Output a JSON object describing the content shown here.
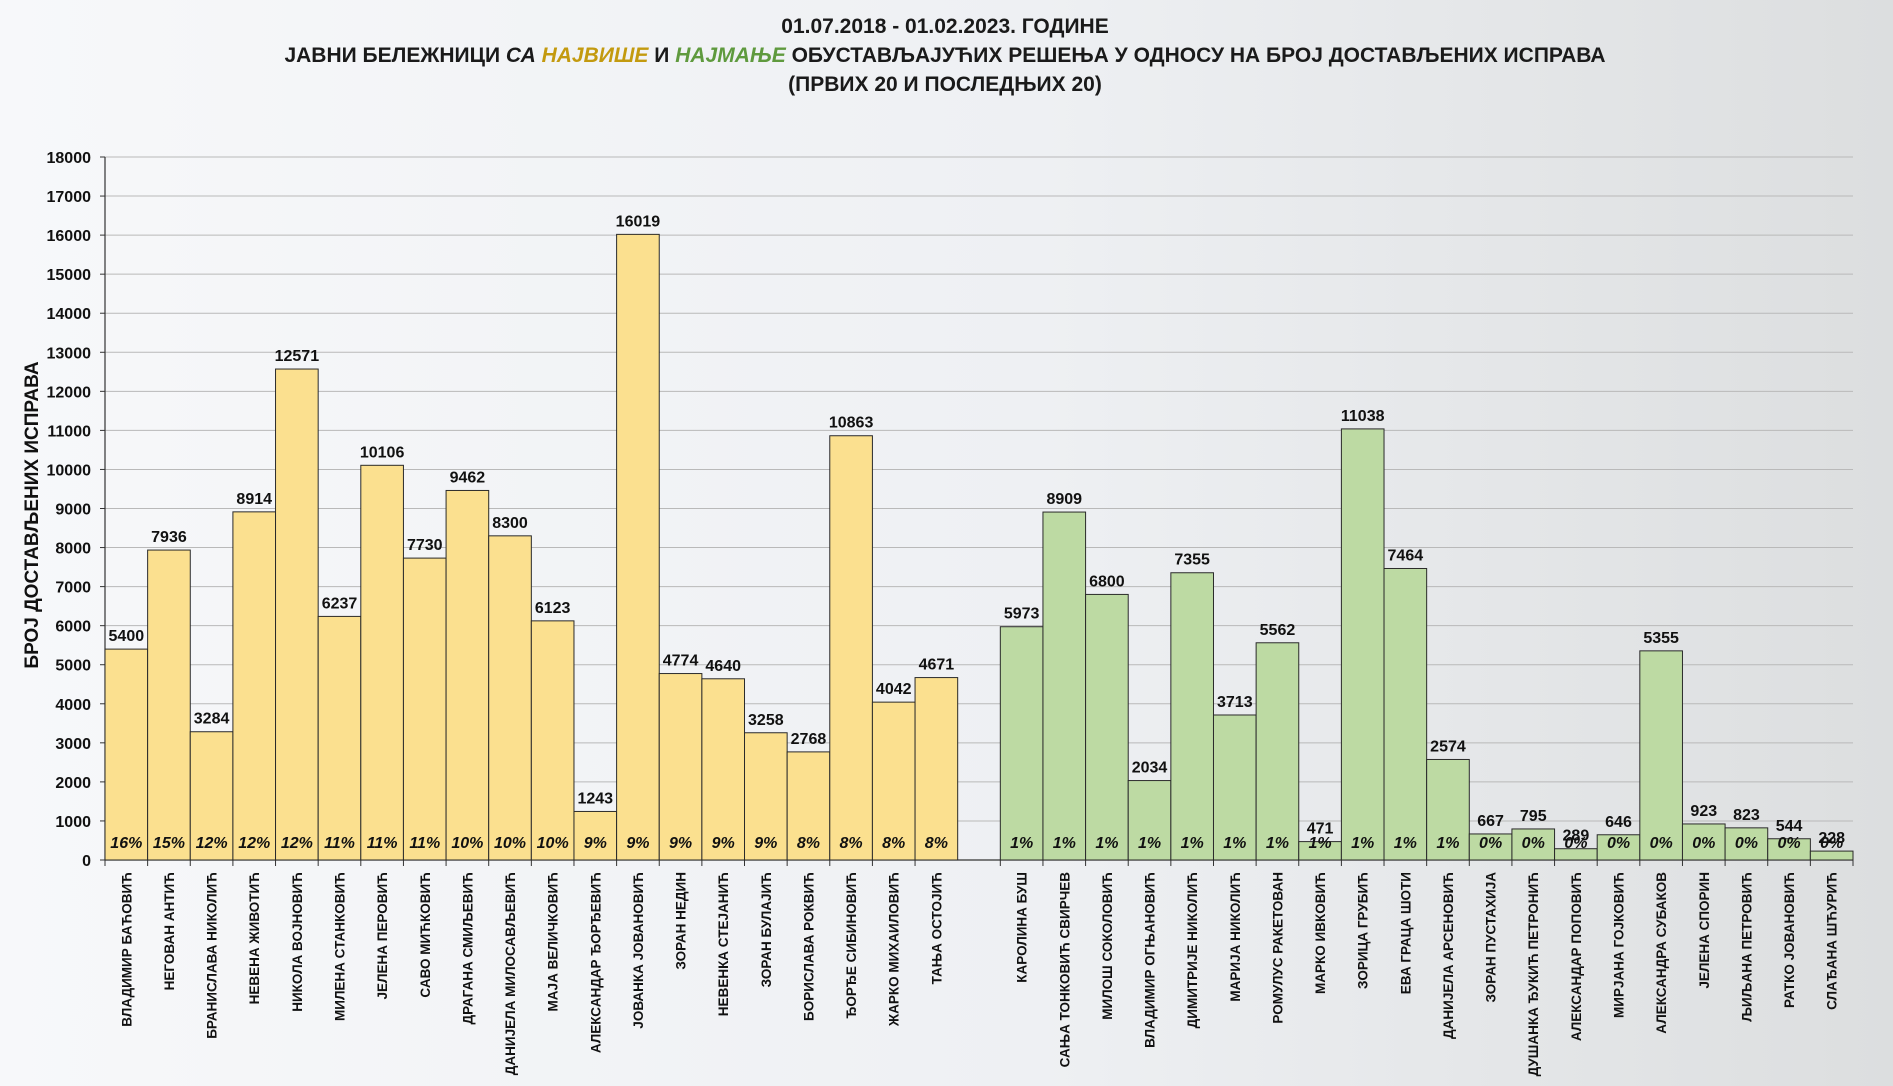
{
  "colors": {
    "top": "#fbe08f",
    "bottom": "#bddaa3",
    "title_top_word": "#c39a0f",
    "title_bottom_word": "#5f9a3e",
    "bar_stroke": "#2a2a2a",
    "grid": "#b9b9b9"
  },
  "chart_data": {
    "type": "bar",
    "title_line1": "01.07.2018  - 01.02.2023.  ГОДИНЕ",
    "title_line2": {
      "part1": "ЈАВНИ БЕЛЕЖНИЦИ ",
      "part2": "СА ",
      "part3": "НАЈВИШЕ",
      "part4": " И ",
      "part5": "НАЈМАЊЕ",
      "part6": " ОБУСТАВЉАЈУЋИХ РЕШЕЊА У ОДНОСУ НА БРОЈ ДОСТАВЉЕНИХ ИСПРАВА"
    },
    "title_line3": "(ПРВИХ 20 И ПОСЛЕДЊИХ 20)",
    "ylabel": "БРОЈ ДОСТАВЉЕНИХ ИСПРАВА",
    "ylim": [
      0,
      18000
    ],
    "yticks": [
      "0",
      "1000",
      "2000",
      "3000",
      "4000",
      "5000",
      "6000",
      "7000",
      "8000",
      "9000",
      "10000",
      "11000",
      "12000",
      "13000",
      "14000",
      "15000",
      "16000",
      "17000",
      "18000"
    ],
    "grid": true,
    "series": [
      {
        "name": "top20",
        "color_key": "top",
        "categories": [
          "ВЛАДИМИР БАЋОВИЋ",
          "НЕГОВАН АНТИЋ",
          "БРАНИСЛАВА НИКОЛИЋ",
          "НЕВЕНА ЖИВОТИЋ",
          "НИКОЛА ВОЈНОВИЋ",
          "МИЛЕНА СТАНКОВИЋ",
          "ЈЕЛЕНА ПЕРОВИЋ",
          "САВО МИЋКОВИЋ",
          "ДРАГАНА СМИЉЕВИЋ",
          "ДАНИЈЕЛА МИЛОСАВЉЕВИЋ",
          "МАЈА ВЕЛИЧКОВИЋ",
          "АЛЕКСАНДАР ЂОРЂЕВИЋ",
          "ЈОВАНКА ЈОВАНОВИЋ",
          "ЗОРАН НЕДИН",
          "НЕВЕНКА СТЕЈАНИЋ",
          "ЗОРАН БУЛАЈИЋ",
          "БОРИСЛАВА РОКВИЋ",
          "ЂОРЂЕ СИБИНОВИЋ",
          "ЖАРКО МИХАИЛОВИЋ",
          "ТАЊА ОСТОЈИЋ"
        ],
        "values": [
          5400,
          7936,
          3284,
          8914,
          12571,
          6237,
          10106,
          7730,
          9462,
          8300,
          6123,
          1243,
          16019,
          4774,
          4640,
          3258,
          2768,
          10863,
          4042,
          4671
        ],
        "percent_labels": [
          "16%",
          "15%",
          "12%",
          "12%",
          "12%",
          "11%",
          "11%",
          "11%",
          "10%",
          "10%",
          "10%",
          "9%",
          "9%",
          "9%",
          "9%",
          "9%",
          "8%",
          "8%",
          "8%",
          "8%"
        ]
      },
      {
        "name": "bottom20",
        "color_key": "bottom",
        "categories": [
          "КАРОЛИНА БУШ",
          "САЊА ТОНКОВИЋ СВИРЧЕВ",
          "МИЛОШ СОКОЛОВИЋ",
          "ВЛАДИМИР ОГЊАНОВИЋ",
          "ДИМИТРИЈЕ НИКОЛИЋ",
          "МАРИЈА НИКОЛИЋ",
          "РОМУЛУС РАКЕТОВАН",
          "МАРКО ИВКОВИЋ",
          "ЗОРИЦА ГРУБИЋ",
          "ЕВА ГРАЦА ШОТИ",
          "ДАНИЈЕЛА АРСЕНОВИЋ",
          "ЗОРАН ПУСТАХИЈА",
          "ДУШАНКА ЂУКИЋ ПЕТРОНИЋ",
          "АЛЕКСАНДАР ПОПОВИЋ",
          "МИРЈАНА ГОЈКОВИЋ",
          "АЛЕКСАНДРА СУБАКОВ",
          "ЈЕЛЕНА СПОРИН",
          "ЉИЉАНА ПЕТРОВИЋ",
          "РАТКО ЈОВАНОВИЋ",
          "СЛАЂАНА ШЋУРИЋ"
        ],
        "values": [
          5973,
          8909,
          6800,
          2034,
          7355,
          3713,
          5562,
          471,
          11038,
          7464,
          2574,
          667,
          795,
          289,
          646,
          5355,
          923,
          823,
          544,
          228
        ],
        "percent_labels": [
          "1%",
          "1%",
          "1%",
          "1%",
          "1%",
          "1%",
          "1%",
          "1%",
          "1%",
          "1%",
          "1%",
          "0%",
          "0%",
          "0%",
          "0%",
          "0%",
          "0%",
          "0%",
          "0%",
          "0%"
        ]
      }
    ]
  }
}
